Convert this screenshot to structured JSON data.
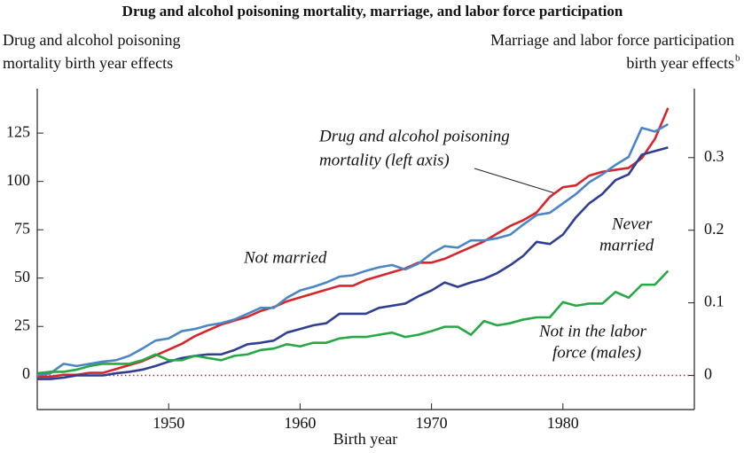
{
  "chart_data": {
    "type": "line",
    "title": "Drug and alcohol poisoning mortality, marriage, and labor force participation",
    "ylabel": [
      "Drug and alcohol poisoning",
      "mortality birth year effects"
    ],
    "y2label": [
      "Marriage and labor force participation",
      "birth year effects"
    ],
    "y2label_note": "b",
    "xlabel": "Birth year",
    "x": [
      1940,
      1941,
      1942,
      1943,
      1944,
      1945,
      1946,
      1947,
      1948,
      1949,
      1950,
      1951,
      1952,
      1953,
      1954,
      1955,
      1956,
      1957,
      1958,
      1959,
      1960,
      1961,
      1962,
      1963,
      1964,
      1965,
      1966,
      1967,
      1968,
      1969,
      1970,
      1971,
      1972,
      1973,
      1974,
      1975,
      1976,
      1977,
      1978,
      1979,
      1980,
      1981,
      1982,
      1983,
      1984,
      1985,
      1986,
      1987,
      1988
    ],
    "xlim": [
      1940,
      1990
    ],
    "xticks": [
      1950,
      1960,
      1970,
      1980
    ],
    "ylim": [
      -18,
      148
    ],
    "yticks": [
      0,
      25,
      50,
      75,
      100,
      125
    ],
    "y2lim": [
      -0.047,
      0.395
    ],
    "y2ticks": [
      0,
      0.1,
      0.2,
      0.3
    ],
    "hline": {
      "axis": "y2",
      "value": 0,
      "color": "#c8202a"
    },
    "series": [
      {
        "color": "#d7262b",
        "axis": "y",
        "values": [
          -1,
          -1,
          0,
          0,
          1,
          1,
          3,
          5,
          7,
          10,
          13,
          16,
          20,
          23,
          26,
          28,
          30,
          33,
          35,
          38,
          40,
          42,
          44,
          46,
          46,
          49,
          51,
          53,
          55,
          58,
          58,
          60,
          63,
          66,
          69,
          73,
          77,
          80,
          84,
          92,
          97,
          98,
          103,
          105,
          106,
          107,
          112,
          122,
          138
        ]
      },
      {
        "color": "#4a86c5",
        "axis": "y2",
        "values": [
          0,
          0.003,
          0.016,
          0.013,
          0.016,
          0.019,
          0.021,
          0.027,
          0.037,
          0.048,
          0.051,
          0.061,
          0.064,
          0.069,
          0.072,
          0.077,
          0.085,
          0.093,
          0.093,
          0.107,
          0.117,
          0.122,
          0.128,
          0.136,
          0.138,
          0.144,
          0.149,
          0.152,
          0.146,
          0.154,
          0.168,
          0.178,
          0.176,
          0.186,
          0.186,
          0.189,
          0.194,
          0.208,
          0.221,
          0.224,
          0.237,
          0.25,
          0.266,
          0.277,
          0.29,
          0.301,
          0.341,
          0.336,
          0.346
        ]
      },
      {
        "color": "#2e3f92",
        "axis": "y2",
        "values": [
          -0.005,
          -0.005,
          -0.003,
          0,
          0,
          0,
          0.003,
          0.005,
          0.008,
          0.013,
          0.019,
          0.024,
          0.027,
          0.029,
          0.029,
          0.035,
          0.043,
          0.045,
          0.048,
          0.059,
          0.064,
          0.069,
          0.072,
          0.085,
          0.085,
          0.085,
          0.093,
          0.096,
          0.099,
          0.109,
          0.117,
          0.128,
          0.122,
          0.128,
          0.133,
          0.141,
          0.152,
          0.165,
          0.184,
          0.181,
          0.194,
          0.218,
          0.237,
          0.25,
          0.269,
          0.277,
          0.304,
          0.309,
          0.314
        ]
      },
      {
        "color": "#27a844",
        "axis": "y2",
        "values": [
          0.003,
          0.005,
          0.005,
          0.008,
          0.013,
          0.016,
          0.016,
          0.016,
          0.021,
          0.029,
          0.021,
          0.021,
          0.027,
          0.024,
          0.021,
          0.027,
          0.029,
          0.035,
          0.037,
          0.043,
          0.04,
          0.045,
          0.045,
          0.051,
          0.053,
          0.053,
          0.056,
          0.059,
          0.053,
          0.056,
          0.061,
          0.067,
          0.067,
          0.056,
          0.075,
          0.069,
          0.072,
          0.077,
          0.08,
          0.08,
          0.101,
          0.096,
          0.099,
          0.099,
          0.115,
          0.107,
          0.125,
          0.125,
          0.144
        ]
      }
    ],
    "annotations": [
      {
        "lines": [
          "Drug and alcohol poisoning",
          "mortality (left axis)"
        ]
      },
      {
        "lines": [
          "Not married"
        ]
      },
      {
        "lines": [
          "Never",
          "married"
        ]
      },
      {
        "lines": [
          "Not in the labor",
          "force (males)"
        ]
      }
    ]
  }
}
